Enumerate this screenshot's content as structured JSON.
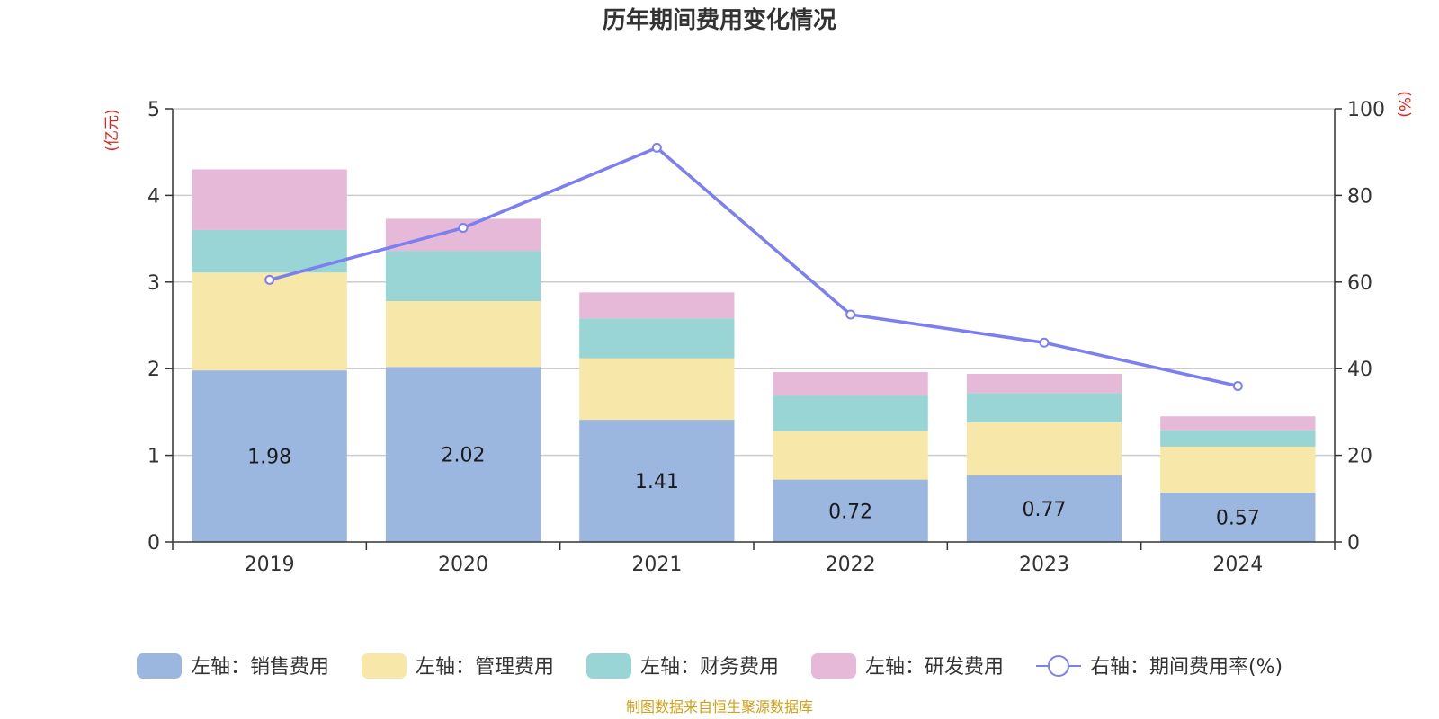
{
  "chart_data": {
    "type": "bar",
    "stacked": true,
    "title": "历年期间费用变化情况",
    "categories": [
      "2019",
      "2020",
      "2021",
      "2022",
      "2023",
      "2024"
    ],
    "left_axis": {
      "unit": "(亿元)",
      "ylim": [
        0,
        5
      ],
      "ticks": [
        "0",
        "1",
        "2",
        "3",
        "4",
        "5"
      ]
    },
    "right_axis": {
      "unit": "(%)",
      "ylim": [
        0,
        100
      ],
      "ticks": [
        "0",
        "20",
        "40",
        "60",
        "80",
        "100"
      ]
    },
    "series": [
      {
        "name": "左轴：销售费用",
        "axis": "left",
        "kind": "bar",
        "color": "#9bb7e0",
        "values": [
          1.98,
          2.02,
          1.41,
          0.72,
          0.77,
          0.57
        ],
        "labels": [
          "1.98",
          "2.02",
          "1.41",
          "0.72",
          "0.77",
          "0.57"
        ]
      },
      {
        "name": "左轴：管理费用",
        "axis": "left",
        "kind": "bar",
        "color": "#f7e7a8",
        "values": [
          1.13,
          0.76,
          0.71,
          0.56,
          0.61,
          0.53
        ]
      },
      {
        "name": "左轴：财务费用",
        "axis": "left",
        "kind": "bar",
        "color": "#98d5d4",
        "values": [
          0.49,
          0.58,
          0.46,
          0.41,
          0.34,
          0.19
        ]
      },
      {
        "name": "左轴：研发费用",
        "axis": "left",
        "kind": "bar",
        "color": "#e6b9d9",
        "values": [
          0.7,
          0.37,
          0.3,
          0.27,
          0.22,
          0.16
        ]
      },
      {
        "name": "右轴：期间费用率(%)",
        "axis": "right",
        "kind": "line",
        "color": "#7b7ff0",
        "values": [
          60.5,
          72.5,
          91.0,
          52.5,
          46.0,
          36.0
        ]
      }
    ],
    "legend_position": "bottom",
    "grid": true
  },
  "colors": {
    "left_unit": "#e8221a",
    "right_unit": "#e8221a",
    "source": "#d4a017",
    "axis": "#333333",
    "grid": "#cccccc"
  },
  "footer": {
    "source": "制图数据来自恒生聚源数据库"
  }
}
